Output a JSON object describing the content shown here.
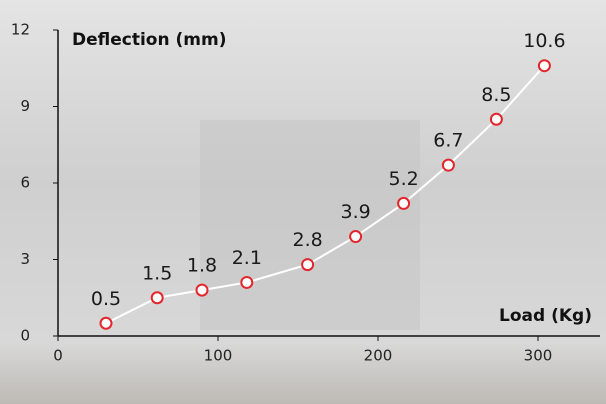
{
  "chart_data": {
    "type": "line",
    "y_label": "Deflection (mm)",
    "x_label": "Load (Kg)",
    "x": [
      30,
      62,
      90,
      118,
      156,
      186,
      216,
      244,
      274,
      304
    ],
    "values": [
      0.5,
      1.5,
      1.8,
      2.1,
      2.8,
      3.9,
      5.2,
      6.7,
      8.5,
      10.6
    ],
    "color": "#ffffff",
    "marker_color": "#e3262d",
    "xlim": [
      0,
      340
    ],
    "xticks": [
      0,
      100,
      200,
      300
    ],
    "ylim": [
      0,
      12
    ],
    "yticks": [
      0,
      3,
      6,
      9,
      12
    ]
  }
}
